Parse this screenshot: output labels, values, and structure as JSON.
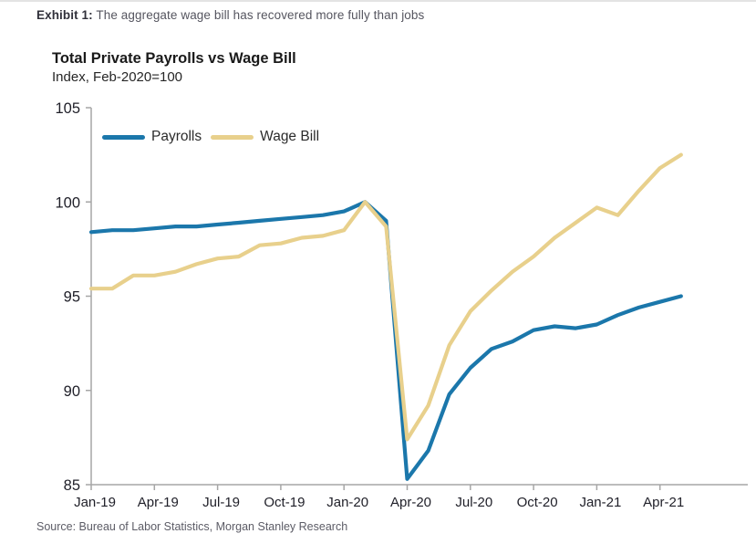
{
  "header": {
    "exhibit_label": "Exhibit 1:",
    "exhibit_text": "The aggregate wage bill has recovered more fully than jobs"
  },
  "chart": {
    "title": "Total Private Payrolls vs Wage Bill",
    "subtitle": "Index, Feb-2020=100"
  },
  "source": "Source: Bureau of Labor Statistics, Morgan Stanley Research",
  "colors": {
    "payrolls": "#1b77ab",
    "wage_bill": "#e8d08c",
    "axis": "#a6a6a6",
    "tick_text": "#1f1f28"
  },
  "chart_data": {
    "type": "line",
    "title": "Total Private Payrolls vs Wage Bill",
    "subtitle": "Index, Feb-2020=100",
    "xlabel": "",
    "ylabel": "",
    "ylim": [
      85,
      105
    ],
    "y_ticks": [
      85,
      90,
      95,
      100,
      105
    ],
    "grid": false,
    "legend_position": "top-left",
    "x": [
      "Jan-19",
      "Feb-19",
      "Mar-19",
      "Apr-19",
      "May-19",
      "Jun-19",
      "Jul-19",
      "Aug-19",
      "Sep-19",
      "Oct-19",
      "Nov-19",
      "Dec-19",
      "Jan-20",
      "Feb-20",
      "Mar-20",
      "Apr-20",
      "May-20",
      "Jun-20",
      "Jul-20",
      "Aug-20",
      "Sep-20",
      "Oct-20",
      "Nov-20",
      "Dec-20",
      "Jan-21",
      "Feb-21",
      "Mar-21",
      "Apr-21",
      "May-21"
    ],
    "x_tick_labels": [
      "Jan-19",
      "Apr-19",
      "Jul-19",
      "Oct-19",
      "Jan-20",
      "Apr-20",
      "Jul-20",
      "Oct-20",
      "Jan-21",
      "Apr-21"
    ],
    "series": [
      {
        "name": "Payrolls",
        "color": "#1b77ab",
        "values": [
          98.4,
          98.5,
          98.5,
          98.6,
          98.7,
          98.7,
          98.8,
          98.9,
          99.0,
          99.1,
          99.2,
          99.3,
          99.5,
          100.0,
          99.0,
          85.3,
          86.8,
          89.8,
          91.2,
          92.2,
          92.6,
          93.2,
          93.4,
          93.3,
          93.5,
          94.0,
          94.4,
          94.7,
          95.0
        ]
      },
      {
        "name": "Wage Bill",
        "color": "#e8d08c",
        "values": [
          95.4,
          95.4,
          96.1,
          96.1,
          96.3,
          96.7,
          97.0,
          97.1,
          97.7,
          97.8,
          98.1,
          98.2,
          98.5,
          100.0,
          98.7,
          87.4,
          89.2,
          92.4,
          94.2,
          95.3,
          96.3,
          97.1,
          98.1,
          98.9,
          99.7,
          99.3,
          100.6,
          101.8,
          102.5
        ]
      }
    ]
  }
}
